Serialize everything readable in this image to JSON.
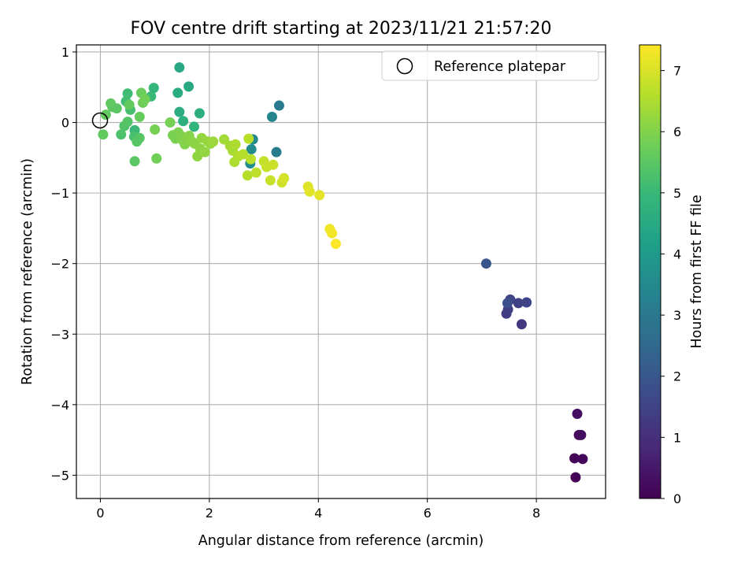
{
  "chart_data": {
    "type": "scatter",
    "title": "FOV centre drift starting at 2023/11/21 21:57:20",
    "xlabel": "Angular distance from reference (arcmin)",
    "ylabel": "Rotation from reference (arcmin)",
    "xlim": [
      -0.44,
      9.27
    ],
    "ylim": [
      -5.33,
      1.1
    ],
    "xticks": [
      0,
      2,
      4,
      6,
      8
    ],
    "yticks": [
      1,
      0,
      -1,
      -2,
      -3,
      -4,
      -5
    ],
    "xtick_labels": [
      "0",
      "2",
      "4",
      "6",
      "8"
    ],
    "ytick_labels": [
      "1",
      "0",
      "−1",
      "−2",
      "−3",
      "−4",
      "−5"
    ],
    "grid": true,
    "legend": {
      "position": "top-right",
      "entries": [
        "Reference platepar"
      ]
    },
    "reference_point": {
      "x": 0,
      "y": 0
    },
    "colorbar": {
      "label": "Hours from first FF file",
      "min": 0,
      "max": 7.42,
      "colormap": "viridis",
      "ticks": [
        0,
        1,
        2,
        3,
        4,
        5,
        6,
        7
      ],
      "tick_labels": [
        "0",
        "1",
        "2",
        "3",
        "4",
        "5",
        "6",
        "7"
      ]
    },
    "points": [
      {
        "x": 8.72,
        "y": -5.03,
        "t": 0.05
      },
      {
        "x": 8.7,
        "y": -4.76,
        "t": 0.1
      },
      {
        "x": 8.85,
        "y": -4.77,
        "t": 0.15
      },
      {
        "x": 8.78,
        "y": -4.43,
        "t": 0.2
      },
      {
        "x": 8.82,
        "y": -4.43,
        "t": 0.25
      },
      {
        "x": 8.75,
        "y": -4.13,
        "t": 0.3
      },
      {
        "x": 7.73,
        "y": -2.86,
        "t": 1.2
      },
      {
        "x": 7.45,
        "y": -2.71,
        "t": 1.3
      },
      {
        "x": 7.48,
        "y": -2.65,
        "t": 1.4
      },
      {
        "x": 7.67,
        "y": -2.56,
        "t": 1.45
      },
      {
        "x": 7.82,
        "y": -2.55,
        "t": 1.5
      },
      {
        "x": 7.52,
        "y": -2.51,
        "t": 1.55
      },
      {
        "x": 7.47,
        "y": -2.56,
        "t": 1.8
      },
      {
        "x": 7.08,
        "y": -2.0,
        "t": 2.0
      },
      {
        "x": 3.28,
        "y": 0.24,
        "t": 3.05
      },
      {
        "x": 3.23,
        "y": -0.42,
        "t": 3.1
      },
      {
        "x": 3.15,
        "y": 0.08,
        "t": 3.4
      },
      {
        "x": 2.8,
        "y": -0.24,
        "t": 3.5
      },
      {
        "x": 2.77,
        "y": -0.38,
        "t": 3.55
      },
      {
        "x": 2.75,
        "y": -0.58,
        "t": 3.6
      },
      {
        "x": 1.45,
        "y": 0.78,
        "t": 4.45
      },
      {
        "x": 1.62,
        "y": 0.51,
        "t": 4.5
      },
      {
        "x": 1.42,
        "y": 0.42,
        "t": 4.55
      },
      {
        "x": 1.45,
        "y": 0.15,
        "t": 4.6
      },
      {
        "x": 1.82,
        "y": 0.13,
        "t": 4.65
      },
      {
        "x": 1.52,
        "y": 0.02,
        "t": 4.7
      },
      {
        "x": 1.72,
        "y": -0.06,
        "t": 4.8
      },
      {
        "x": 0.98,
        "y": 0.49,
        "t": 4.9
      },
      {
        "x": 0.93,
        "y": 0.37,
        "t": 5.0
      },
      {
        "x": 0.63,
        "y": -0.11,
        "t": 5.0
      },
      {
        "x": 0.5,
        "y": 0.41,
        "t": 5.1
      },
      {
        "x": 0.47,
        "y": 0.3,
        "t": 5.15
      },
      {
        "x": 0.55,
        "y": 0.18,
        "t": 5.2
      },
      {
        "x": 0.62,
        "y": -0.2,
        "t": 5.25
      },
      {
        "x": 0.38,
        "y": -0.17,
        "t": 5.3
      },
      {
        "x": 0.44,
        "y": -0.05,
        "t": 5.35
      },
      {
        "x": 0.5,
        "y": 0.01,
        "t": 5.4
      },
      {
        "x": 0.67,
        "y": -0.27,
        "t": 5.45
      },
      {
        "x": 0.72,
        "y": -0.22,
        "t": 5.45
      },
      {
        "x": 0.63,
        "y": -0.55,
        "t": 5.5
      },
      {
        "x": 0.22,
        "y": 0.22,
        "t": 5.5
      },
      {
        "x": 0.3,
        "y": 0.2,
        "t": 5.5
      },
      {
        "x": 0.19,
        "y": 0.27,
        "t": 5.55
      },
      {
        "x": 0.1,
        "y": 0.11,
        "t": 5.6
      },
      {
        "x": 0.05,
        "y": -0.17,
        "t": 5.6
      },
      {
        "x": 0.53,
        "y": 0.25,
        "t": 5.6
      },
      {
        "x": 0.72,
        "y": 0.08,
        "t": 5.65
      },
      {
        "x": 0.75,
        "y": 0.42,
        "t": 5.7
      },
      {
        "x": 0.78,
        "y": 0.28,
        "t": 5.75
      },
      {
        "x": 0.82,
        "y": 0.33,
        "t": 5.8
      },
      {
        "x": 1.03,
        "y": -0.51,
        "t": 5.8
      },
      {
        "x": 1.0,
        "y": -0.1,
        "t": 5.85
      },
      {
        "x": 1.28,
        "y": 0.0,
        "t": 5.85
      },
      {
        "x": 1.33,
        "y": -0.18,
        "t": 5.9
      },
      {
        "x": 1.38,
        "y": -0.23,
        "t": 5.9
      },
      {
        "x": 1.43,
        "y": -0.14,
        "t": 5.95
      },
      {
        "x": 1.48,
        "y": -0.19,
        "t": 5.95
      },
      {
        "x": 1.52,
        "y": -0.26,
        "t": 6.0
      },
      {
        "x": 1.55,
        "y": -0.31,
        "t": 6.0
      },
      {
        "x": 1.58,
        "y": -0.22,
        "t": 6.05
      },
      {
        "x": 1.63,
        "y": -0.19,
        "t": 6.05
      },
      {
        "x": 1.68,
        "y": -0.27,
        "t": 6.1
      },
      {
        "x": 1.73,
        "y": -0.3,
        "t": 6.1
      },
      {
        "x": 1.78,
        "y": -0.48,
        "t": 6.15
      },
      {
        "x": 1.83,
        "y": -0.37,
        "t": 6.15
      },
      {
        "x": 1.86,
        "y": -0.22,
        "t": 6.2
      },
      {
        "x": 1.92,
        "y": -0.42,
        "t": 6.2
      },
      {
        "x": 1.97,
        "y": -0.27,
        "t": 6.25
      },
      {
        "x": 2.02,
        "y": -0.3,
        "t": 6.25
      },
      {
        "x": 2.07,
        "y": -0.27,
        "t": 6.3
      },
      {
        "x": 2.27,
        "y": -0.24,
        "t": 6.35
      },
      {
        "x": 2.38,
        "y": -0.33,
        "t": 6.4
      },
      {
        "x": 2.43,
        "y": -0.4,
        "t": 6.45
      },
      {
        "x": 2.46,
        "y": -0.56,
        "t": 6.5
      },
      {
        "x": 2.48,
        "y": -0.31,
        "t": 6.5
      },
      {
        "x": 2.53,
        "y": -0.48,
        "t": 6.55
      },
      {
        "x": 2.62,
        "y": -0.45,
        "t": 6.6
      },
      {
        "x": 2.7,
        "y": -0.75,
        "t": 6.6
      },
      {
        "x": 2.72,
        "y": -0.23,
        "t": 6.65
      },
      {
        "x": 2.76,
        "y": -0.52,
        "t": 6.65
      },
      {
        "x": 2.86,
        "y": -0.71,
        "t": 6.7
      },
      {
        "x": 3.0,
        "y": -0.55,
        "t": 6.75
      },
      {
        "x": 3.05,
        "y": -0.63,
        "t": 6.8
      },
      {
        "x": 3.12,
        "y": -0.82,
        "t": 6.8
      },
      {
        "x": 3.17,
        "y": -0.6,
        "t": 6.85
      },
      {
        "x": 3.33,
        "y": -0.85,
        "t": 6.9
      },
      {
        "x": 3.37,
        "y": -0.79,
        "t": 6.95
      },
      {
        "x": 3.81,
        "y": -0.91,
        "t": 7.05
      },
      {
        "x": 3.84,
        "y": -0.98,
        "t": 7.1
      },
      {
        "x": 4.02,
        "y": -1.03,
        "t": 7.15
      },
      {
        "x": 4.21,
        "y": -1.51,
        "t": 7.25
      },
      {
        "x": 4.25,
        "y": -1.57,
        "t": 7.3
      },
      {
        "x": 4.32,
        "y": -1.72,
        "t": 7.4
      }
    ]
  }
}
